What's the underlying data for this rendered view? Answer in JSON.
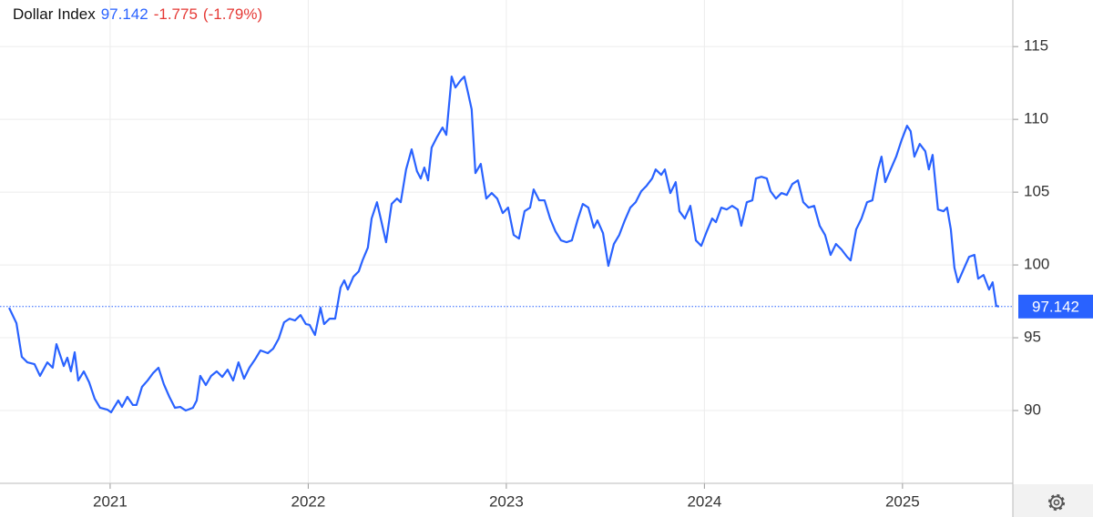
{
  "chart_data": {
    "type": "line",
    "title": "Dollar Index",
    "change": "-1.775",
    "change_percent": "(-1.79%)",
    "xlim": [
      2020.444,
      2025.557
    ],
    "xticks": [
      2021,
      2022,
      2023,
      2024,
      2025
    ],
    "ylim": [
      85,
      118.2
    ],
    "yticks": [
      90,
      95,
      100,
      105,
      110,
      115
    ],
    "grid": true,
    "series": [
      {
        "name": "Dollar Index",
        "color": "#2962ff",
        "x": [
          2020.49,
          2020.527,
          2020.554,
          2020.582,
          2020.618,
          2020.646,
          2020.683,
          2020.71,
          2020.729,
          2020.766,
          2020.784,
          2020.802,
          2020.821,
          2020.839,
          2020.867,
          2020.894,
          2020.922,
          2020.949,
          2020.986,
          2021.005,
          2021.041,
          2021.06,
          2021.087,
          2021.115,
          2021.133,
          2021.161,
          2021.189,
          2021.216,
          2021.244,
          2021.271,
          2021.299,
          2021.327,
          2021.354,
          2021.382,
          2021.418,
          2021.437,
          2021.455,
          2021.483,
          2021.51,
          2021.538,
          2021.566,
          2021.593,
          2021.621,
          2021.648,
          2021.676,
          2021.703,
          2021.731,
          2021.759,
          2021.796,
          2021.823,
          2021.851,
          2021.878,
          2021.906,
          2021.933,
          2021.961,
          2021.988,
          2022.007,
          2022.034,
          2022.062,
          2022.08,
          2022.108,
          2022.136,
          2022.163,
          2022.182,
          2022.2,
          2022.228,
          2022.255,
          2022.274,
          2022.301,
          2022.32,
          2022.347,
          2022.366,
          2022.393,
          2022.421,
          2022.448,
          2022.467,
          2022.494,
          2022.522,
          2022.549,
          2022.568,
          2022.586,
          2022.605,
          2022.623,
          2022.651,
          2022.678,
          2022.697,
          2022.724,
          2022.743,
          2022.77,
          2022.788,
          2022.807,
          2022.825,
          2022.844,
          2022.871,
          2022.899,
          2022.926,
          2022.954,
          2022.982,
          2023.009,
          2023.037,
          2023.064,
          2023.092,
          2023.12,
          2023.138,
          2023.166,
          2023.193,
          2023.221,
          2023.248,
          2023.276,
          2023.304,
          2023.331,
          2023.359,
          2023.386,
          2023.414,
          2023.442,
          2023.46,
          2023.488,
          2023.515,
          2023.543,
          2023.57,
          2023.598,
          2023.626,
          2023.653,
          2023.681,
          2023.708,
          2023.736,
          2023.754,
          2023.782,
          2023.8,
          2023.828,
          2023.855,
          2023.874,
          2023.901,
          2023.929,
          2023.957,
          2023.984,
          2024.012,
          2024.039,
          2024.058,
          2024.085,
          2024.113,
          2024.14,
          2024.168,
          2024.186,
          2024.214,
          2024.242,
          2024.26,
          2024.288,
          2024.315,
          2024.334,
          2024.361,
          2024.389,
          2024.416,
          2024.444,
          2024.472,
          2024.499,
          2024.526,
          2024.554,
          2024.582,
          2024.609,
          2024.637,
          2024.664,
          2024.692,
          2024.72,
          2024.738,
          2024.766,
          2024.793,
          2024.821,
          2024.848,
          2024.876,
          2024.894,
          2024.913,
          2024.94,
          2024.968,
          2024.995,
          2025.023,
          2025.041,
          2025.06,
          2025.087,
          2025.115,
          2025.133,
          2025.152,
          2025.179,
          2025.207,
          2025.225,
          2025.244,
          2025.262,
          2025.28,
          2025.308,
          2025.336,
          2025.363,
          2025.382,
          2025.409,
          2025.437,
          2025.455,
          2025.473,
          2025.487
        ],
        "values": [
          97.06,
          96.0,
          93.69,
          93.31,
          93.19,
          92.38,
          93.31,
          92.94,
          94.56,
          93.06,
          93.63,
          92.69,
          94.0,
          92.06,
          92.69,
          91.94,
          90.81,
          90.19,
          90.06,
          89.88,
          90.69,
          90.25,
          90.94,
          90.38,
          90.38,
          91.63,
          92.06,
          92.56,
          92.94,
          91.81,
          90.94,
          90.19,
          90.25,
          90.0,
          90.19,
          90.69,
          92.38,
          91.75,
          92.38,
          92.69,
          92.31,
          92.81,
          92.06,
          93.31,
          92.19,
          92.94,
          93.5,
          94.13,
          93.94,
          94.25,
          94.94,
          96.06,
          96.31,
          96.19,
          96.56,
          95.94,
          95.88,
          95.19,
          97.06,
          95.94,
          96.31,
          96.31,
          98.44,
          98.94,
          98.31,
          99.19,
          99.56,
          100.31,
          101.19,
          103.19,
          104.31,
          103.19,
          101.56,
          104.19,
          104.56,
          104.31,
          106.56,
          107.94,
          106.44,
          105.94,
          106.69,
          105.81,
          108.06,
          108.81,
          109.44,
          108.94,
          112.94,
          112.19,
          112.69,
          112.94,
          111.81,
          110.69,
          106.31,
          106.94,
          104.56,
          104.94,
          104.56,
          103.56,
          103.94,
          102.06,
          101.81,
          103.69,
          103.94,
          105.19,
          104.44,
          104.44,
          103.19,
          102.31,
          101.69,
          101.56,
          101.69,
          103.06,
          104.19,
          103.94,
          102.56,
          103.06,
          102.19,
          99.94,
          101.44,
          102.06,
          103.06,
          103.94,
          104.31,
          105.06,
          105.44,
          105.94,
          106.56,
          106.19,
          106.56,
          104.94,
          105.69,
          103.69,
          103.19,
          104.06,
          101.69,
          101.31,
          102.31,
          103.19,
          102.94,
          103.94,
          103.81,
          104.06,
          103.81,
          102.69,
          104.31,
          104.44,
          105.94,
          106.06,
          105.94,
          105.06,
          104.56,
          104.94,
          104.81,
          105.56,
          105.81,
          104.31,
          103.94,
          104.06,
          102.69,
          102.06,
          100.69,
          101.44,
          101.06,
          100.56,
          100.31,
          102.44,
          103.19,
          104.31,
          104.44,
          106.56,
          107.44,
          105.69,
          106.56,
          107.44,
          108.56,
          109.56,
          109.19,
          107.44,
          108.31,
          107.81,
          106.56,
          107.56,
          103.81,
          103.69,
          103.94,
          102.44,
          99.81,
          98.81,
          99.69,
          100.56,
          100.69,
          99.06,
          99.31,
          98.31,
          98.81,
          97.19,
          97.142
        ]
      }
    ]
  }
}
